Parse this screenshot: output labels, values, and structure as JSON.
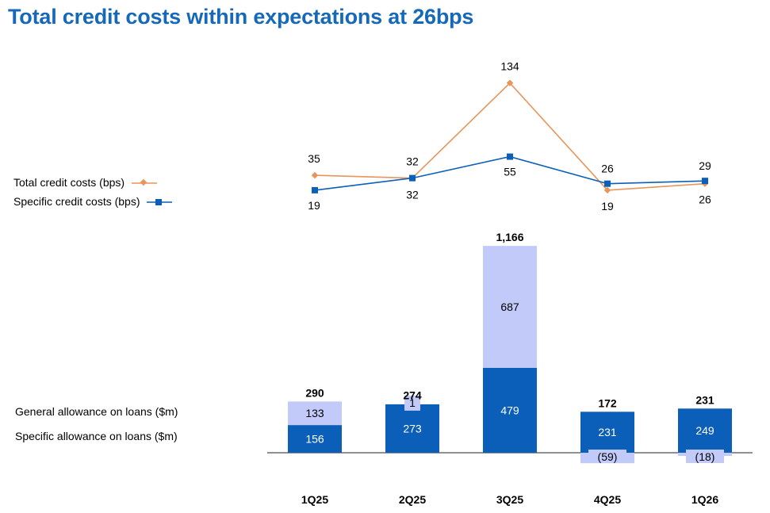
{
  "page": {
    "title": "Total credit costs within expectations at 26bps"
  },
  "colors": {
    "total_line": "#E8955A",
    "specific_line": "#0B5FB8",
    "specific_bar": "#0B5FB8",
    "general_bar": "#C2CAFA",
    "title": "#1669B8"
  },
  "legend": {
    "total_credit_costs": "Total credit costs (bps)",
    "specific_credit_costs": "Specific credit costs (bps)",
    "general_allowance": "General allowance on loans ($m)",
    "specific_allowance": "Specific allowance on loans ($m)"
  },
  "chart_data": [
    {
      "type": "line",
      "categories": [
        "1Q25",
        "2Q25",
        "3Q25",
        "4Q25",
        "1Q26"
      ],
      "series": [
        {
          "name": "Total credit costs (bps)",
          "values": [
            35,
            32,
            134,
            19,
            26
          ]
        },
        {
          "name": "Specific credit costs (bps)",
          "values": [
            19,
            32,
            55,
            26,
            29
          ]
        }
      ]
    },
    {
      "type": "bar",
      "stacked": true,
      "categories": [
        "1Q25",
        "2Q25",
        "3Q25",
        "4Q25",
        "1Q26"
      ],
      "series": [
        {
          "name": "Specific allowance on loans ($m)",
          "values": [
            156,
            273,
            479,
            231,
            249
          ],
          "labels": [
            "156",
            "273",
            "479",
            "231",
            "249"
          ]
        },
        {
          "name": "General allowance on loans ($m)",
          "values": [
            133,
            1,
            687,
            -59,
            -18
          ],
          "labels": [
            "133",
            "1",
            "687",
            "(59)",
            "(18)"
          ]
        }
      ],
      "totals": [
        290,
        274,
        1166,
        172,
        231
      ],
      "total_labels": [
        "290",
        "274",
        "1,166",
        "172",
        "231"
      ]
    }
  ]
}
